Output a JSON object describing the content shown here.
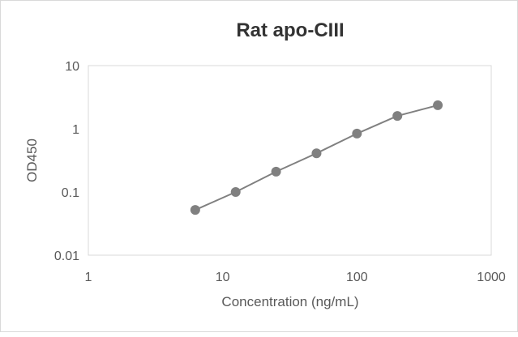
{
  "chart_data": {
    "type": "line",
    "title": "Rat apo-CIII",
    "xlabel": "Concentration (ng/mL)",
    "ylabel": "OD450",
    "x_scale": "log",
    "y_scale": "log",
    "xlim": [
      1,
      1000
    ],
    "ylim": [
      0.01,
      10
    ],
    "x_ticks": [
      "1",
      "10",
      "100",
      "1000"
    ],
    "y_ticks": [
      "0.01",
      "0.1",
      "1",
      "10"
    ],
    "grid": false,
    "legend": "none",
    "series_color": "#808080",
    "x": [
      6.25,
      12.5,
      25,
      50,
      100,
      200,
      400
    ],
    "y": [
      0.052,
      0.1,
      0.21,
      0.41,
      0.84,
      1.6,
      2.36
    ]
  }
}
